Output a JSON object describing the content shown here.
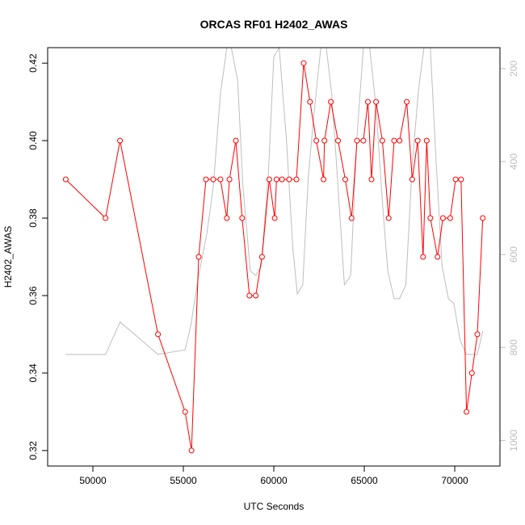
{
  "chart_data": {
    "type": "line",
    "title": "ORCAS RF01 H2402_AWAS",
    "xlabel": "UTC Seconds",
    "ylabel": "H2402_AWAS",
    "xlim": [
      47500,
      72500
    ],
    "ylim": [
      0.316,
      0.424
    ],
    "x_ticks": [
      50000,
      55000,
      60000,
      65000,
      70000
    ],
    "y_ticks": [
      0.32,
      0.34,
      0.36,
      0.38,
      0.4,
      0.42
    ],
    "y2lim": [
      1055,
      155
    ],
    "y2_ticks": [
      200,
      400,
      600,
      800,
      1000
    ],
    "series": [
      {
        "color": "#ff0000",
        "marker": "open-circle",
        "x": [
          48500,
          50700,
          51500,
          53600,
          55100,
          55450,
          55850,
          56250,
          56650,
          57050,
          57400,
          57550,
          57900,
          58250,
          58650,
          59000,
          59350,
          59750,
          60050,
          60150,
          60450,
          60850,
          61250,
          61650,
          62000,
          62350,
          62750,
          62800,
          63150,
          63550,
          63950,
          64300,
          64600,
          64950,
          65200,
          65400,
          65650,
          66000,
          66350,
          66650,
          66950,
          67350,
          67650,
          67950,
          68250,
          68450,
          68650,
          69050,
          69350,
          69750,
          70050,
          70350,
          70650,
          70950,
          71250,
          71550
        ],
        "y": [
          0.39,
          0.38,
          0.4,
          0.35,
          0.33,
          0.32,
          0.37,
          0.39,
          0.39,
          0.39,
          0.38,
          0.39,
          0.4,
          0.38,
          0.36,
          0.36,
          0.37,
          0.39,
          0.38,
          0.39,
          0.39,
          0.39,
          0.39,
          0.42,
          0.41,
          0.4,
          0.39,
          0.4,
          0.41,
          0.4,
          0.39,
          0.38,
          0.4,
          0.4,
          0.41,
          0.39,
          0.41,
          0.4,
          0.38,
          0.4,
          0.4,
          0.41,
          0.39,
          0.4,
          0.37,
          0.4,
          0.38,
          0.37,
          0.38,
          0.38,
          0.39,
          0.39,
          0.33,
          0.34,
          0.35,
          0.38
        ]
      },
      {
        "color": "#bebebe",
        "axis": "right",
        "x": [
          48500,
          50700,
          51500,
          53600,
          55100,
          55400,
          55850,
          56300,
          56650,
          57050,
          57400,
          57650,
          58000,
          58300,
          58700,
          59000,
          59300,
          59700,
          60000,
          60300,
          60700,
          61050,
          61300,
          61600,
          61900,
          62200,
          62600,
          62900,
          63200,
          63500,
          63900,
          64250,
          64600,
          64950,
          65300,
          65650,
          66000,
          66300,
          66650,
          66950,
          67300,
          67650,
          68000,
          68300,
          68650,
          68950,
          69300,
          69650,
          69950,
          70300,
          70650,
          70950,
          71250,
          71550
        ],
        "y": [
          815,
          815,
          745,
          815,
          805,
          755,
          645,
          555,
          455,
          255,
          125,
          125,
          225,
          455,
          635,
          645,
          625,
          425,
          175,
          125,
          355,
          585,
          685,
          665,
          435,
          305,
          155,
          125,
          255,
          425,
          665,
          645,
          345,
          155,
          125,
          285,
          485,
          635,
          695,
          695,
          665,
          405,
          245,
          125,
          155,
          385,
          625,
          695,
          705,
          785,
          815,
          815,
          815,
          765
        ]
      }
    ]
  }
}
